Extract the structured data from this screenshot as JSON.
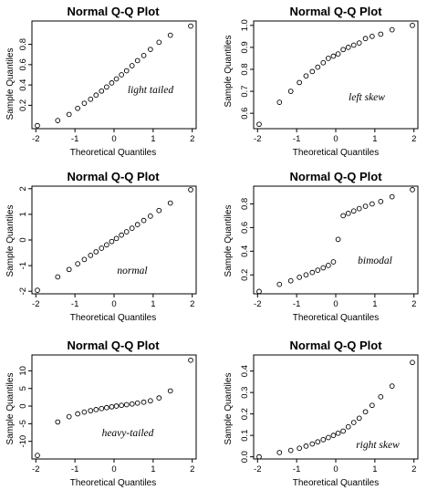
{
  "chart_data": [
    {
      "type": "scatter",
      "title": "Normal Q-Q Plot",
      "xlabel": "Theoretical Quantiles",
      "ylabel": "Sample Quantiles",
      "annotation": "light tailed",
      "xlim": [
        -2.1,
        2.1
      ],
      "ylim": [
        -0.03,
        1.03
      ],
      "xticks": [
        -2,
        -1,
        0,
        1,
        2
      ],
      "yticks": [
        0.2,
        0.4,
        0.6,
        0.8
      ],
      "ytick_labels": [
        "0.2",
        "0.4",
        "0.6",
        "0.8"
      ],
      "x": [
        -1.96,
        -1.44,
        -1.15,
        -0.93,
        -0.76,
        -0.6,
        -0.46,
        -0.32,
        -0.19,
        -0.06,
        0.06,
        0.19,
        0.32,
        0.46,
        0.6,
        0.76,
        0.93,
        1.15,
        1.44,
        1.96
      ],
      "y": [
        0.0,
        0.05,
        0.11,
        0.17,
        0.22,
        0.26,
        0.3,
        0.34,
        0.38,
        0.42,
        0.46,
        0.5,
        0.54,
        0.59,
        0.64,
        0.69,
        0.75,
        0.82,
        0.89,
        0.98
      ]
    },
    {
      "type": "scatter",
      "title": "Normal Q-Q Plot",
      "xlabel": "Theoretical Quantiles",
      "ylabel": "Sample Quantiles",
      "annotation": "left skew",
      "xlim": [
        -2.1,
        2.1
      ],
      "ylim": [
        0.53,
        1.02
      ],
      "xticks": [
        -2,
        -1,
        0,
        1,
        2
      ],
      "yticks": [
        0.6,
        0.7,
        0.8,
        0.9,
        1.0
      ],
      "ytick_labels": [
        "0.6",
        "0.7",
        "0.8",
        "0.9",
        "1.0"
      ],
      "x": [
        -1.96,
        -1.44,
        -1.15,
        -0.93,
        -0.76,
        -0.6,
        -0.46,
        -0.32,
        -0.19,
        -0.06,
        0.06,
        0.19,
        0.32,
        0.46,
        0.6,
        0.76,
        0.93,
        1.15,
        1.44,
        1.96
      ],
      "y": [
        0.55,
        0.65,
        0.7,
        0.74,
        0.77,
        0.79,
        0.81,
        0.83,
        0.85,
        0.86,
        0.87,
        0.89,
        0.9,
        0.91,
        0.92,
        0.94,
        0.95,
        0.96,
        0.98,
        1.0
      ]
    },
    {
      "type": "scatter",
      "title": "Normal Q-Q Plot",
      "xlabel": "Theoretical Quantiles",
      "ylabel": "Sample Quantiles",
      "annotation": "normal",
      "xlim": [
        -2.1,
        2.1
      ],
      "ylim": [
        -2.1,
        2.1
      ],
      "xticks": [
        -2,
        -1,
        0,
        1,
        2
      ],
      "yticks": [
        -2,
        -1,
        0,
        1,
        2
      ],
      "ytick_labels": [
        "-2",
        "-1",
        "0",
        "1",
        "2"
      ],
      "x": [
        -1.96,
        -1.44,
        -1.15,
        -0.93,
        -0.76,
        -0.6,
        -0.46,
        -0.32,
        -0.19,
        -0.06,
        0.06,
        0.19,
        0.32,
        0.46,
        0.6,
        0.76,
        0.93,
        1.15,
        1.44,
        1.96
      ],
      "y": [
        -1.96,
        -1.44,
        -1.15,
        -0.93,
        -0.76,
        -0.6,
        -0.46,
        -0.32,
        -0.19,
        -0.06,
        0.06,
        0.19,
        0.32,
        0.46,
        0.6,
        0.76,
        0.93,
        1.15,
        1.44,
        1.96
      ]
    },
    {
      "type": "scatter",
      "title": "Normal Q-Q Plot",
      "xlabel": "Theoretical Quantiles",
      "ylabel": "Sample Quantiles",
      "annotation": "bimodal",
      "xlim": [
        -2.1,
        2.1
      ],
      "ylim": [
        0.04,
        0.95
      ],
      "xticks": [
        -2,
        -1,
        0,
        1,
        2
      ],
      "yticks": [
        0.2,
        0.4,
        0.6,
        0.8
      ],
      "ytick_labels": [
        "0.2",
        "0.4",
        "0.6",
        "0.8"
      ],
      "x": [
        -1.96,
        -1.44,
        -1.15,
        -0.93,
        -0.76,
        -0.6,
        -0.46,
        -0.32,
        -0.19,
        -0.06,
        0.06,
        0.19,
        0.32,
        0.46,
        0.6,
        0.76,
        0.93,
        1.15,
        1.44,
        1.96
      ],
      "y": [
        0.06,
        0.12,
        0.15,
        0.18,
        0.2,
        0.22,
        0.24,
        0.26,
        0.28,
        0.31,
        0.5,
        0.7,
        0.72,
        0.74,
        0.76,
        0.78,
        0.8,
        0.82,
        0.86,
        0.92
      ]
    },
    {
      "type": "scatter",
      "title": "Normal Q-Q Plot",
      "xlabel": "Theoretical Quantiles",
      "ylabel": "Sample Quantiles",
      "annotation": "heavy-tailed",
      "xlim": [
        -2.1,
        2.1
      ],
      "ylim": [
        -15,
        14.5
      ],
      "xticks": [
        -2,
        -1,
        0,
        1,
        2
      ],
      "yticks": [
        -10,
        -5,
        0,
        5,
        10
      ],
      "ytick_labels": [
        "-10",
        "-5",
        "0",
        "5",
        "10"
      ],
      "x": [
        -1.96,
        -1.44,
        -1.15,
        -0.93,
        -0.76,
        -0.6,
        -0.46,
        -0.32,
        -0.19,
        -0.06,
        0.06,
        0.19,
        0.32,
        0.46,
        0.6,
        0.76,
        0.93,
        1.15,
        1.44,
        1.96
      ],
      "y": [
        -14.0,
        -4.5,
        -3.0,
        -2.2,
        -1.7,
        -1.3,
        -1.0,
        -0.7,
        -0.45,
        -0.2,
        0.0,
        0.2,
        0.4,
        0.6,
        0.85,
        1.1,
        1.5,
        2.3,
        4.3,
        13.0
      ]
    },
    {
      "type": "scatter",
      "title": "Normal Q-Q Plot",
      "xlabel": "Theoretical Quantiles",
      "ylabel": "Sample Quantiles",
      "annotation": "right skew",
      "xlim": [
        -2.1,
        2.1
      ],
      "ylim": [
        -0.01,
        0.475
      ],
      "xticks": [
        -2,
        -1,
        0,
        1,
        2
      ],
      "yticks": [
        0.0,
        0.1,
        0.2,
        0.3,
        0.4
      ],
      "ytick_labels": [
        "0.0",
        "0.1",
        "0.2",
        "0.3",
        "0.4"
      ],
      "x": [
        -1.96,
        -1.44,
        -1.15,
        -0.93,
        -0.76,
        -0.6,
        -0.46,
        -0.32,
        -0.19,
        -0.06,
        0.06,
        0.19,
        0.32,
        0.46,
        0.6,
        0.76,
        0.93,
        1.15,
        1.44,
        1.96
      ],
      "y": [
        0.0,
        0.02,
        0.03,
        0.04,
        0.05,
        0.06,
        0.07,
        0.08,
        0.09,
        0.1,
        0.11,
        0.12,
        0.14,
        0.16,
        0.18,
        0.21,
        0.24,
        0.28,
        0.33,
        0.44
      ]
    }
  ]
}
